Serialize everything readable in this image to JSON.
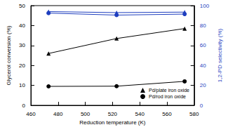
{
  "chart_data": {
    "type": "line",
    "x": [
      473,
      523,
      573
    ],
    "xlabel": "Reduction temperature (K)",
    "ylabel": "Glycerol conversion (%)",
    "y2label": "1,2-PD selectivity (%)",
    "xlim": [
      460,
      580
    ],
    "xticks": [
      460,
      480,
      500,
      520,
      540,
      560,
      580
    ],
    "ylim": [
      0,
      50
    ],
    "yticks": [
      0,
      10,
      20,
      30,
      40,
      50
    ],
    "y2lim": [
      0,
      100
    ],
    "y2ticks": [
      0,
      20,
      40,
      60,
      80,
      100
    ],
    "grid": false,
    "legend": "lower right",
    "series": [
      {
        "name": "Pd/plate iron oxide",
        "color": "#000000",
        "marker": "triangle",
        "values": [
          26,
          33.5,
          38.5
        ]
      },
      {
        "name": "Pd/rod iron oxide",
        "color": "#000000",
        "marker": "circle",
        "values": [
          9.5,
          9.6,
          12
        ]
      },
      {
        "name": "Pd/plate iron oxide",
        "color": "#1f3fbf",
        "marker": "triangle",
        "axis": "y2",
        "values": [
          94,
          93,
          93.5
        ]
      },
      {
        "name": "Pd/rod iron oxide",
        "color": "#1f3fbf",
        "marker": "circle",
        "axis": "y2",
        "values": [
          92.5,
          90.5,
          91.5
        ]
      }
    ]
  }
}
